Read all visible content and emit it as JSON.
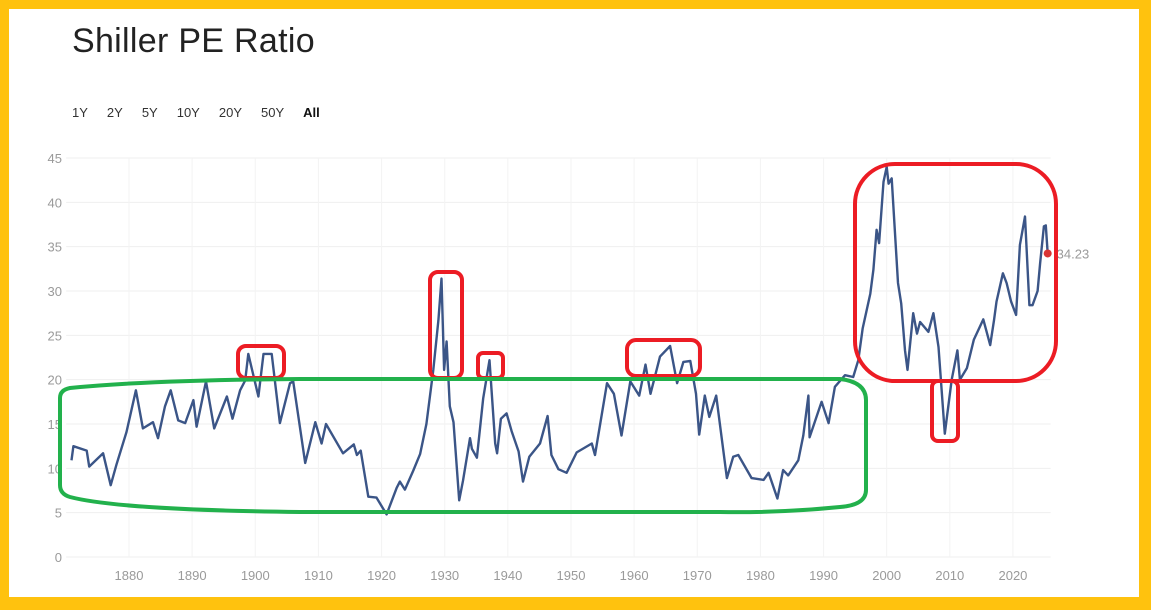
{
  "title": "Shiller PE Ratio",
  "range_buttons": [
    {
      "label": "1Y",
      "active": false
    },
    {
      "label": "2Y",
      "active": false
    },
    {
      "label": "5Y",
      "active": false
    },
    {
      "label": "10Y",
      "active": false
    },
    {
      "label": "20Y",
      "active": false
    },
    {
      "label": "50Y",
      "active": false
    },
    {
      "label": "All",
      "active": true
    }
  ],
  "colors": {
    "frame": "#FFC20E",
    "line": "#3B5587",
    "last_point": "#D93434",
    "highlight_high": "#EC1C24",
    "highlight_low": "#22B14C"
  },
  "chart_data": {
    "type": "line",
    "title": "Shiller PE Ratio",
    "xlabel": "",
    "ylabel": "",
    "xlim": [
      1871,
      2025.5
    ],
    "ylim": [
      0,
      45
    ],
    "grid": true,
    "x_ticks": [
      "1880",
      "1890",
      "1900",
      "1910",
      "1920",
      "1930",
      "1940",
      "1950",
      "1960",
      "1970",
      "1980",
      "1990",
      "2000",
      "2010",
      "2020"
    ],
    "y_ticks": [
      "0",
      "5",
      "10",
      "15",
      "20",
      "25",
      "30",
      "35",
      "40",
      "45"
    ],
    "last_value_label": "34.23",
    "x": [
      1870.9,
      1871.2,
      1873.3,
      1873.7,
      1875.9,
      1877.1,
      1878.0,
      1879.6,
      1881.1,
      1882.2,
      1883.8,
      1884.6,
      1885.7,
      1886.6,
      1887.8,
      1888.9,
      1890.2,
      1890.7,
      1892.2,
      1893.5,
      1895.5,
      1896.4,
      1897.6,
      1898.4,
      1898.9,
      1900.5,
      1901.3,
      1902.6,
      1903.9,
      1905.5,
      1906.0,
      1907.9,
      1909.5,
      1910.5,
      1911.2,
      1913.9,
      1915.6,
      1916.1,
      1916.7,
      1917.9,
      1919.2,
      1920.8,
      1922.4,
      1922.9,
      1923.7,
      1925.0,
      1926.1,
      1927.1,
      1928.2,
      1929.0,
      1929.5,
      1929.9,
      1930.3,
      1930.8,
      1931.4,
      1932.3,
      1932.9,
      1934.0,
      1934.3,
      1935.1,
      1936.1,
      1937.1,
      1938.0,
      1938.3,
      1938.9,
      1939.8,
      1940.6,
      1941.7,
      1942.4,
      1943.4,
      1945.1,
      1946.3,
      1946.9,
      1948.0,
      1949.3,
      1950.9,
      1953.3,
      1953.8,
      1955.7,
      1956.8,
      1958.0,
      1959.4,
      1960.8,
      1961.8,
      1962.6,
      1964.1,
      1965.7,
      1966.8,
      1967.8,
      1968.9,
      1969.8,
      1970.3,
      1971.2,
      1971.9,
      1973.0,
      1974.7,
      1975.7,
      1976.5,
      1978.6,
      1980.5,
      1981.3,
      1982.7,
      1983.6,
      1984.4,
      1986.0,
      1986.8,
      1987.6,
      1987.8,
      1989.7,
      1990.8,
      1991.8,
      1993.4,
      1994.7,
      1995.5,
      1996.2,
      1997.4,
      1997.9,
      1998.4,
      1998.8,
      1999.5,
      2000.0,
      2000.3,
      2000.8,
      2001.8,
      2002.3,
      2002.9,
      2003.3,
      2004.2,
      2004.8,
      2005.3,
      2006.6,
      2007.4,
      2008.2,
      2009.2,
      2010.3,
      2011.2,
      2011.6,
      2012.7,
      2013.8,
      2015.3,
      2016.4,
      2017.0,
      2017.4,
      2018.4,
      2019.0,
      2019.7,
      2020.5,
      2021.1,
      2021.9,
      2022.6,
      2023.1,
      2023.9,
      2024.3,
      2024.9,
      2025.2,
      2025.5
    ],
    "y": [
      10.9,
      12.5,
      12.0,
      10.2,
      11.7,
      8.1,
      10.4,
      14.1,
      18.8,
      14.5,
      15.2,
      13.4,
      17.0,
      18.8,
      15.4,
      15.1,
      17.7,
      14.7,
      19.8,
      14.5,
      18.1,
      15.6,
      18.8,
      19.9,
      22.9,
      18.1,
      22.9,
      22.9,
      15.1,
      19.6,
      19.8,
      10.6,
      15.2,
      12.8,
      15.0,
      11.7,
      12.7,
      11.5,
      12.0,
      6.8,
      6.7,
      4.8,
      7.8,
      8.5,
      7.6,
      9.7,
      11.6,
      15.0,
      21.1,
      26.7,
      31.4,
      21.1,
      24.3,
      17.0,
      15.2,
      6.4,
      8.6,
      13.4,
      12.2,
      11.2,
      17.9,
      22.2,
      12.8,
      11.7,
      15.6,
      16.2,
      14.2,
      11.9,
      8.5,
      11.3,
      12.8,
      15.9,
      11.5,
      9.9,
      9.5,
      11.8,
      12.8,
      11.5,
      19.6,
      18.4,
      13.7,
      19.8,
      18.2,
      21.7,
      18.4,
      22.6,
      23.8,
      19.6,
      22.0,
      22.1,
      18.4,
      13.8,
      18.2,
      15.8,
      18.2,
      8.9,
      11.3,
      11.5,
      8.9,
      8.7,
      9.5,
      6.6,
      9.8,
      9.2,
      10.9,
      13.7,
      18.2,
      13.5,
      17.5,
      15.1,
      19.2,
      20.5,
      20.3,
      22.2,
      25.8,
      29.7,
      32.4,
      36.9,
      35.4,
      42.3,
      44.0,
      42.1,
      42.7,
      30.9,
      28.6,
      23.3,
      21.1,
      27.5,
      25.2,
      26.5,
      25.4,
      27.5,
      23.7,
      13.9,
      20.0,
      23.3,
      20.0,
      21.3,
      24.5,
      26.8,
      23.9,
      26.7,
      28.8,
      32.0,
      30.9,
      28.8,
      27.3,
      35.2,
      38.4,
      28.4,
      28.4,
      30.0,
      33.1,
      37.3,
      37.4,
      34.23
    ]
  }
}
